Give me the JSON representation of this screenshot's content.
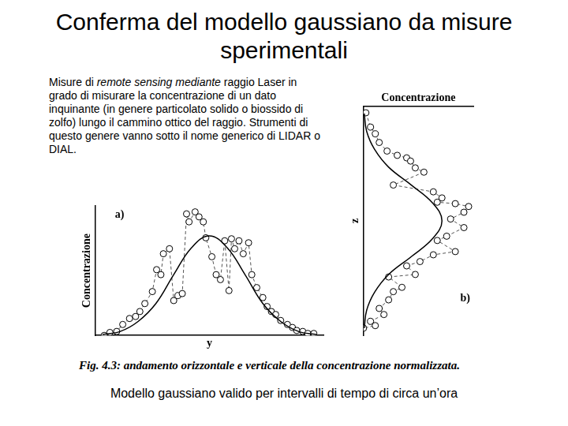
{
  "header": {
    "title": "Conferma del modello gaussiano da misure sperimentali"
  },
  "text": [
    {
      "text": "Misure di "
    },
    {
      "text": "remote sensing mediante",
      "style": "italic"
    },
    {
      "text": " raggio Laser in grado di misurare la concentrazione di un dato inquinante (in genere particolato solido o biossido di zolfo) lungo il cammino ottico del raggio. Strumenti di questo genere vanno sotto il nome generico di LIDAR o DIAL."
    }
  ],
  "chart_data": [
    {
      "type": "scatter",
      "annotations": [
        "a)"
      ],
      "x_label": "y",
      "y_label": "Concentrazione",
      "xlim": [
        -3.2,
        3.2
      ],
      "ylim": [
        0,
        1.3
      ],
      "xticks": [],
      "yticks": [],
      "tick_labels": false,
      "grid": false,
      "series": [
        {
          "type": "scatter",
          "marker": "circle",
          "line_style": "dashed",
          "color": "#555555",
          "x": [
            -2.95,
            -2.79,
            -2.6,
            -2.43,
            -2.24,
            -2.07,
            -1.95,
            -1.81,
            -1.6,
            -1.48,
            -1.36,
            -1.29,
            -1.12,
            -1.0,
            -0.88,
            -0.76,
            -0.64,
            -0.57,
            -0.4,
            -0.29,
            -0.17,
            -0.1,
            0.07,
            0.19,
            0.31,
            0.43,
            0.55,
            0.62,
            0.71,
            0.83,
            0.95,
            1.1,
            1.19,
            1.33,
            1.5,
            1.62,
            1.74,
            1.86,
            2.0,
            2.19,
            2.33,
            2.45,
            2.62,
            2.76,
            2.93
          ],
          "values": [
            0.0,
            0.03,
            0.04,
            0.11,
            0.17,
            0.19,
            0.24,
            0.32,
            0.44,
            0.66,
            0.61,
            0.82,
            0.87,
            0.35,
            0.4,
            0.42,
            1.22,
            1.14,
            1.24,
            1.19,
            1.14,
            0.98,
            0.79,
            0.61,
            0.56,
            0.95,
            0.45,
            0.97,
            0.87,
            0.95,
            0.82,
            0.93,
            0.61,
            0.48,
            0.38,
            0.29,
            0.24,
            0.21,
            0.15,
            0.11,
            0.08,
            0.05,
            0.04,
            0.02,
            0.02
          ]
        },
        {
          "type": "line",
          "marker": "none",
          "line_style": "solid",
          "color": "#000000",
          "x": [
            -3.0,
            -2.5,
            -2.0,
            -1.5,
            -1.0,
            -0.5,
            0.0,
            0.5,
            1.0,
            1.5,
            2.0,
            2.5,
            3.0
          ],
          "values": [
            0.01,
            0.04,
            0.14,
            0.32,
            0.61,
            0.88,
            1.0,
            0.88,
            0.61,
            0.32,
            0.14,
            0.04,
            0.01
          ]
        }
      ]
    },
    {
      "type": "scatter",
      "annotations": [
        "b)"
      ],
      "x_label": "Concentrazione",
      "y_label": "z",
      "xlim": [
        0,
        1.4
      ],
      "ylim": [
        -3.2,
        3.2
      ],
      "xticks": [],
      "yticks": [],
      "tick_labels": false,
      "grid": false,
      "series": [
        {
          "type": "scatter",
          "marker": "circle",
          "line_style": "dashed",
          "color": "#555555",
          "x": [
            0.03,
            0.09,
            0.15,
            0.2,
            0.3,
            0.43,
            0.55,
            0.6,
            0.66,
            0.77,
            0.38,
            0.89,
            1.0,
            0.94,
            1.17,
            1.34,
            1.28,
            1.11,
            1.28,
            1.06,
            0.94,
            1.17,
            0.89,
            0.72,
            0.55,
            0.66,
            0.32,
            0.49,
            0.38,
            0.32,
            0.2,
            0.26,
            0.09,
            0.15,
            0.0
          ],
          "values": [
            3.02,
            2.62,
            2.43,
            2.19,
            1.95,
            1.83,
            1.76,
            1.67,
            1.48,
            1.36,
            1.0,
            0.81,
            0.64,
            0.52,
            0.48,
            0.4,
            0.24,
            0.05,
            -0.19,
            -0.43,
            -0.55,
            -0.86,
            -0.95,
            -1.14,
            -1.26,
            -1.5,
            -1.57,
            -1.86,
            -1.98,
            -2.21,
            -2.45,
            -2.62,
            -2.81,
            -2.93,
            -3.0
          ]
        },
        {
          "type": "line",
          "marker": "none",
          "line_style": "solid",
          "color": "#000000",
          "x": [
            0.01,
            0.04,
            0.14,
            0.32,
            0.61,
            0.88,
            1.0,
            0.88,
            0.61,
            0.32,
            0.14,
            0.04,
            0.01
          ],
          "values": [
            -3.0,
            -2.5,
            -2.0,
            -1.5,
            -1.0,
            -0.5,
            0.0,
            0.5,
            1.0,
            1.5,
            2.0,
            2.5,
            3.0
          ]
        }
      ]
    }
  ],
  "caption": "Fig. 4.3: andamento orizzontale e verticale della concentrazione normalizzata.",
  "footer": "Modello gaussiano valido per intervalli di tempo di circa un’ora"
}
